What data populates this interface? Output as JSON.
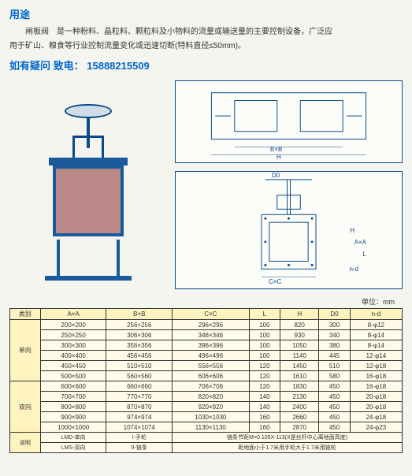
{
  "header": {
    "title": "用途",
    "desc1": "闸板阀　是一种粉料、晶粒料、颗粒料及小物料的流量或输送量的主要控制设备，广泛应",
    "desc2": "用于矿山、粮食等行业控制流量变化或迅速切断(特料直径≤50mm)。",
    "contact_label": "如有疑问 致电：",
    "contact_phone": "15888215509"
  },
  "unit_label": "单位：mm",
  "table": {
    "headers": [
      "类别",
      "A×A",
      "B×B",
      "C×C",
      "L",
      "H",
      "D0",
      "n-d"
    ],
    "cat1": "单向",
    "cat2": "双向",
    "cat3": "说明",
    "rows": [
      [
        "200×200",
        "256×256",
        "296×296",
        "100",
        "820",
        "300",
        "8-φ12"
      ],
      [
        "250×250",
        "306×306",
        "346×346",
        "100",
        "930",
        "340",
        "8-φ14"
      ],
      [
        "300×300",
        "356×356",
        "396×396",
        "100",
        "1050",
        "380",
        "8-φ14"
      ],
      [
        "400×400",
        "456×456",
        "496×496",
        "100",
        "1140",
        "445",
        "12-φ14"
      ],
      [
        "450×450",
        "510×510",
        "556×556",
        "120",
        "1450",
        "510",
        "12-φ18"
      ],
      [
        "500×500",
        "560×560",
        "606×606",
        "120",
        "1610",
        "580",
        "16-φ18"
      ],
      [
        "600×600",
        "660×660",
        "706×706",
        "120",
        "1830",
        "450",
        "16-φ18"
      ],
      [
        "700×700",
        "770×770",
        "820×820",
        "140",
        "2130",
        "450",
        "20-φ18"
      ],
      [
        "800×800",
        "870×870",
        "920×920",
        "140",
        "2400",
        "450",
        "20-φ18"
      ],
      [
        "900×900",
        "974×974",
        "1030×1030",
        "160",
        "2660",
        "450",
        "24-φ18"
      ],
      [
        "1000×1000",
        "1074×1074",
        "1130×1130",
        "160",
        "2870",
        "450",
        "24-φ23"
      ]
    ],
    "note_row": [
      "LMD-单向",
      "I-手轮",
      "链条节距M=0.105X-113(X是丝杆中心离地面高度)"
    ],
    "note_row2": [
      "LMS-双向",
      "II-链条",
      "距地面小于1.7米用手轮大于1.7米用链轮"
    ]
  },
  "schematic_labels": {
    "H": "H",
    "B": "B×B",
    "D0": "D0",
    "C": "C×C",
    "A": "A×A",
    "L": "L",
    "nd": "n-d"
  },
  "colors": {
    "title": "#0066cc",
    "valve_frame": "#1a5a9a",
    "valve_plate": "#bb8888",
    "table_bg": "#fffbe8",
    "table_header": "#fff3c0"
  }
}
